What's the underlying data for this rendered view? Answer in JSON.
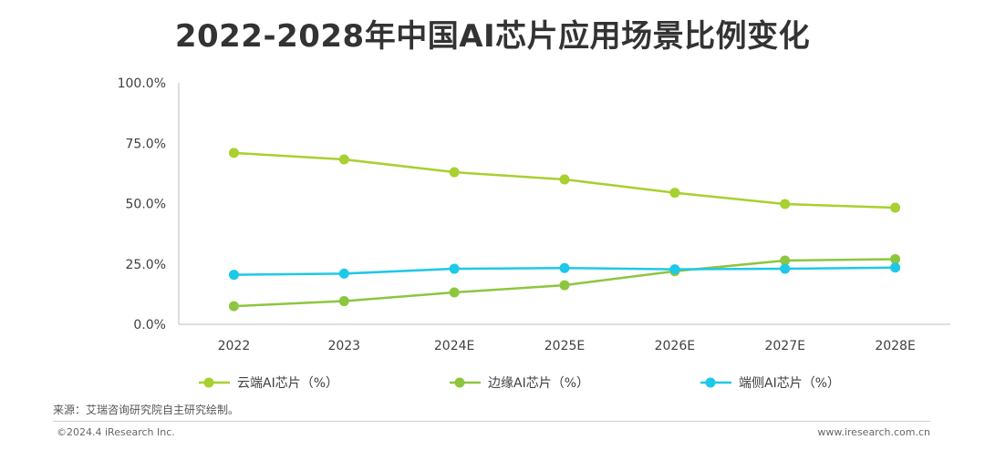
{
  "title": "2022-2028年中国AI芯片应用场景比例变化",
  "source": "来源：艾瑞咨询研究院自主研究绘制。",
  "copyright": "©2024.4 iResearch Inc.",
  "website": "www.iresearch.com.cn",
  "chart_data": {
    "type": "line",
    "title": "2022-2028年中国AI芯片应用场景比例变化",
    "xlabel": "",
    "ylabel": "",
    "categories": [
      "2022",
      "2023",
      "2024E",
      "2025E",
      "2026E",
      "2027E",
      "2028E"
    ],
    "ylim": [
      0,
      100
    ],
    "yticks": [
      "0.0%",
      "25.0%",
      "50.0%",
      "75.0%",
      "100.0%"
    ],
    "grid": false,
    "legend_position": "bottom",
    "series": [
      {
        "name": "云端AI芯片（%）",
        "color": "#a8d02f",
        "values": [
          71.0,
          68.3,
          63.0,
          60.0,
          54.5,
          49.8,
          48.3
        ]
      },
      {
        "name": "边缘AI芯片（%）",
        "color": "#8cc63f",
        "values": [
          7.5,
          9.6,
          13.2,
          16.2,
          22.0,
          26.4,
          27.0
        ]
      },
      {
        "name": "端侧AI芯片（%）",
        "color": "#1ec8e8",
        "values": [
          20.5,
          21.0,
          23.0,
          23.3,
          22.8,
          23.0,
          23.5
        ]
      }
    ]
  }
}
